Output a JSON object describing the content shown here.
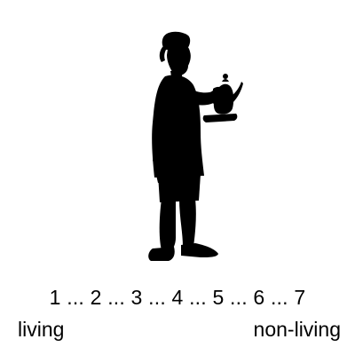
{
  "figure": {
    "icon": "silhouette-butler-with-teapot-icon",
    "color": "#000000"
  },
  "scale": {
    "text": "1 ... 2 ... 3 ... 4 ... 5 ... 6 ... 7",
    "left_anchor": "living",
    "right_anchor": "non-living"
  }
}
